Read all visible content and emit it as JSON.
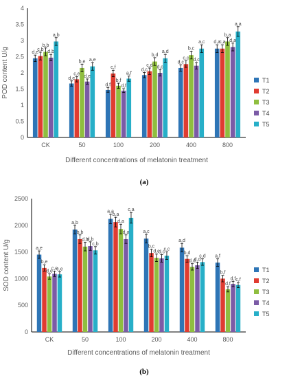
{
  "chart_data": [
    {
      "type": "bar",
      "panel_label": "(a)",
      "ylabel": "POD content U/g",
      "xlabel": "Different concentrations of melatonin treatment",
      "categories": [
        "CK",
        "50",
        "100",
        "200",
        "400",
        "800"
      ],
      "ylim": [
        0,
        4
      ],
      "yticks": [
        "0",
        "0.5",
        "1",
        "1.5",
        "2",
        "2.5",
        "3",
        "3.5",
        "4"
      ],
      "series": [
        {
          "name": "T1",
          "color": "#2E75B6",
          "values": [
            2.45,
            1.67,
            1.47,
            1.93,
            2.15,
            2.75
          ],
          "errors": [
            0.1,
            0.08,
            0.07,
            0.08,
            0.1,
            0.12
          ]
        },
        {
          "name": "T2",
          "color": "#E03C31",
          "values": [
            2.52,
            1.8,
            1.98,
            2.05,
            2.27,
            2.75
          ],
          "errors": [
            0.12,
            0.08,
            0.1,
            0.1,
            0.1,
            0.12
          ]
        },
        {
          "name": "T3",
          "color": "#8FBE3F",
          "values": [
            2.65,
            2.15,
            1.6,
            2.35,
            2.55,
            2.97
          ],
          "errors": [
            0.12,
            0.12,
            0.08,
            0.12,
            0.12,
            0.12
          ]
        },
        {
          "name": "T4",
          "color": "#7B5BA6",
          "values": [
            2.47,
            1.73,
            1.45,
            2.0,
            2.22,
            2.8
          ],
          "errors": [
            0.1,
            0.08,
            0.06,
            0.1,
            0.1,
            0.12
          ]
        },
        {
          "name": "T5",
          "color": "#27AFC8",
          "values": [
            2.97,
            2.2,
            1.82,
            2.45,
            2.75,
            3.28
          ],
          "errors": [
            0.12,
            0.12,
            0.08,
            0.12,
            0.12,
            0.15
          ]
        }
      ],
      "annotations": [
        [
          "d,e",
          "c,b",
          "b,b",
          "d,b",
          "a,b"
        ],
        [
          "d,e",
          "c,e",
          "b,e",
          "d,e",
          "a,e"
        ],
        [
          "d,f",
          "c,f",
          "b,f",
          "d,f",
          "a,f"
        ],
        [
          "d,c",
          "c,d",
          "b,d",
          "d,c",
          "a,d"
        ],
        [
          "d,c",
          "c,c",
          "b,c",
          "d,c",
          "a,c"
        ],
        [
          "d,a",
          "c,a",
          "b,a",
          "d,a",
          "a,a"
        ]
      ],
      "legend_position": "right"
    },
    {
      "type": "bar",
      "panel_label": "(b)",
      "ylabel": "SOD content U/g",
      "xlabel": "Different concentrations of melatonin treatment",
      "categories": [
        "CK",
        "50",
        "100",
        "200",
        "400",
        "800"
      ],
      "ylim": [
        0,
        2500
      ],
      "yticks": [
        "0",
        "500",
        "1000",
        "1500",
        "2000",
        "2500"
      ],
      "series": [
        {
          "name": "T1",
          "color": "#2E75B6",
          "values": [
            1450,
            1920,
            2120,
            1750,
            1580,
            1300
          ],
          "errors": [
            70,
            80,
            90,
            80,
            80,
            70
          ]
        },
        {
          "name": "T2",
          "color": "#E03C31",
          "values": [
            1200,
            1740,
            2060,
            1480,
            1370,
            1000
          ],
          "errors": [
            60,
            80,
            90,
            70,
            60,
            60
          ]
        },
        {
          "name": "T3",
          "color": "#8FBE3F",
          "values": [
            1040,
            1600,
            1930,
            1390,
            1220,
            800
          ],
          "errors": [
            50,
            80,
            90,
            70,
            60,
            50
          ]
        },
        {
          "name": "T4",
          "color": "#7B5BA6",
          "values": [
            1090,
            1610,
            1740,
            1380,
            1250,
            900
          ],
          "errors": [
            50,
            80,
            80,
            70,
            60,
            50
          ]
        },
        {
          "name": "T5",
          "color": "#27AFC8",
          "values": [
            1080,
            1530,
            2140,
            1430,
            1310,
            880
          ],
          "errors": [
            50,
            70,
            100,
            70,
            60,
            50
          ]
        }
      ],
      "annotations": [
        [
          "a,e",
          "b,e",
          "d,e",
          "c,e",
          "c,e"
        ],
        [
          "a,b",
          "b,b",
          "d,b",
          "d,b",
          "c,b"
        ],
        [
          "a,a",
          "b,a",
          "d,a",
          "d,a",
          "c,a"
        ],
        [
          "a,c",
          "b,c",
          "d,c",
          "d,c",
          "c,c"
        ],
        [
          "a,d",
          "b,d",
          "d,d",
          "d,d",
          "c,d"
        ],
        [
          "a,f",
          "b,f",
          "d,f",
          "d,f",
          "c,f"
        ]
      ],
      "legend_position": "right"
    }
  ]
}
